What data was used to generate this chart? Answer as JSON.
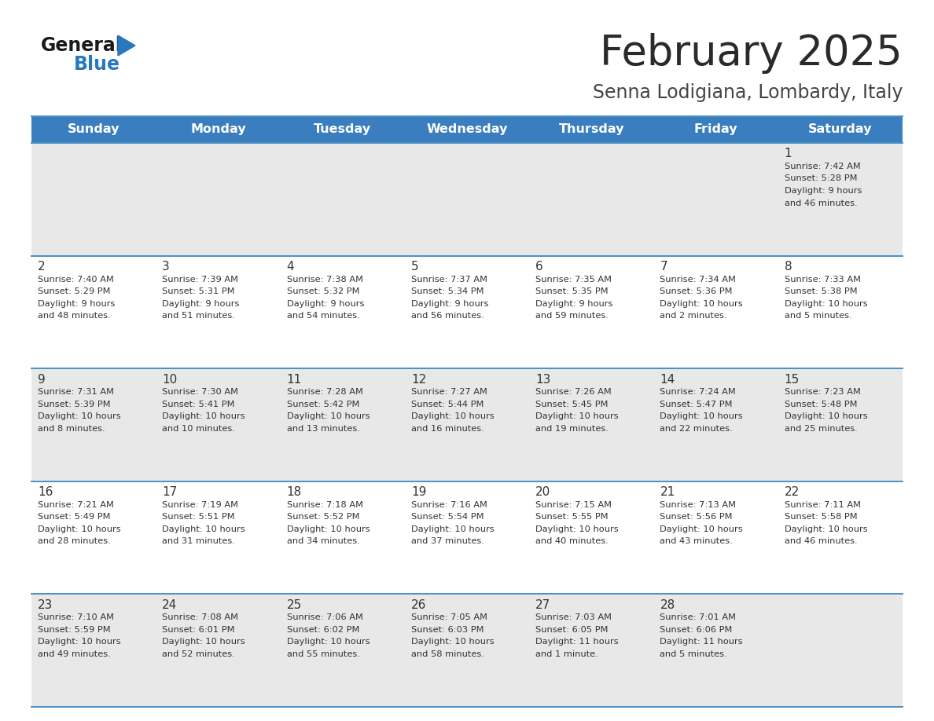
{
  "title": "February 2025",
  "subtitle": "Senna Lodigiana, Lombardy, Italy",
  "days_of_week": [
    "Sunday",
    "Monday",
    "Tuesday",
    "Wednesday",
    "Thursday",
    "Friday",
    "Saturday"
  ],
  "header_bg": "#3a7ebf",
  "header_text": "#ffffff",
  "row_bg_odd": "#e8e8e8",
  "row_bg_even": "#ffffff",
  "cell_text": "#333333",
  "line_color": "#4a90c4",
  "logo_general_color": "#1a1a1a",
  "logo_blue_color": "#2878be",
  "title_color": "#2a2a2a",
  "subtitle_color": "#444444",
  "calendar": [
    [
      {
        "day": null,
        "sunrise": null,
        "sunset": null,
        "daylight": null
      },
      {
        "day": null,
        "sunrise": null,
        "sunset": null,
        "daylight": null
      },
      {
        "day": null,
        "sunrise": null,
        "sunset": null,
        "daylight": null
      },
      {
        "day": null,
        "sunrise": null,
        "sunset": null,
        "daylight": null
      },
      {
        "day": null,
        "sunrise": null,
        "sunset": null,
        "daylight": null
      },
      {
        "day": null,
        "sunrise": null,
        "sunset": null,
        "daylight": null
      },
      {
        "day": 1,
        "sunrise": "7:42 AM",
        "sunset": "5:28 PM",
        "daylight": "9 hours\nand 46 minutes."
      }
    ],
    [
      {
        "day": 2,
        "sunrise": "7:40 AM",
        "sunset": "5:29 PM",
        "daylight": "9 hours\nand 48 minutes."
      },
      {
        "day": 3,
        "sunrise": "7:39 AM",
        "sunset": "5:31 PM",
        "daylight": "9 hours\nand 51 minutes."
      },
      {
        "day": 4,
        "sunrise": "7:38 AM",
        "sunset": "5:32 PM",
        "daylight": "9 hours\nand 54 minutes."
      },
      {
        "day": 5,
        "sunrise": "7:37 AM",
        "sunset": "5:34 PM",
        "daylight": "9 hours\nand 56 minutes."
      },
      {
        "day": 6,
        "sunrise": "7:35 AM",
        "sunset": "5:35 PM",
        "daylight": "9 hours\nand 59 minutes."
      },
      {
        "day": 7,
        "sunrise": "7:34 AM",
        "sunset": "5:36 PM",
        "daylight": "10 hours\nand 2 minutes."
      },
      {
        "day": 8,
        "sunrise": "7:33 AM",
        "sunset": "5:38 PM",
        "daylight": "10 hours\nand 5 minutes."
      }
    ],
    [
      {
        "day": 9,
        "sunrise": "7:31 AM",
        "sunset": "5:39 PM",
        "daylight": "10 hours\nand 8 minutes."
      },
      {
        "day": 10,
        "sunrise": "7:30 AM",
        "sunset": "5:41 PM",
        "daylight": "10 hours\nand 10 minutes."
      },
      {
        "day": 11,
        "sunrise": "7:28 AM",
        "sunset": "5:42 PM",
        "daylight": "10 hours\nand 13 minutes."
      },
      {
        "day": 12,
        "sunrise": "7:27 AM",
        "sunset": "5:44 PM",
        "daylight": "10 hours\nand 16 minutes."
      },
      {
        "day": 13,
        "sunrise": "7:26 AM",
        "sunset": "5:45 PM",
        "daylight": "10 hours\nand 19 minutes."
      },
      {
        "day": 14,
        "sunrise": "7:24 AM",
        "sunset": "5:47 PM",
        "daylight": "10 hours\nand 22 minutes."
      },
      {
        "day": 15,
        "sunrise": "7:23 AM",
        "sunset": "5:48 PM",
        "daylight": "10 hours\nand 25 minutes."
      }
    ],
    [
      {
        "day": 16,
        "sunrise": "7:21 AM",
        "sunset": "5:49 PM",
        "daylight": "10 hours\nand 28 minutes."
      },
      {
        "day": 17,
        "sunrise": "7:19 AM",
        "sunset": "5:51 PM",
        "daylight": "10 hours\nand 31 minutes."
      },
      {
        "day": 18,
        "sunrise": "7:18 AM",
        "sunset": "5:52 PM",
        "daylight": "10 hours\nand 34 minutes."
      },
      {
        "day": 19,
        "sunrise": "7:16 AM",
        "sunset": "5:54 PM",
        "daylight": "10 hours\nand 37 minutes."
      },
      {
        "day": 20,
        "sunrise": "7:15 AM",
        "sunset": "5:55 PM",
        "daylight": "10 hours\nand 40 minutes."
      },
      {
        "day": 21,
        "sunrise": "7:13 AM",
        "sunset": "5:56 PM",
        "daylight": "10 hours\nand 43 minutes."
      },
      {
        "day": 22,
        "sunrise": "7:11 AM",
        "sunset": "5:58 PM",
        "daylight": "10 hours\nand 46 minutes."
      }
    ],
    [
      {
        "day": 23,
        "sunrise": "7:10 AM",
        "sunset": "5:59 PM",
        "daylight": "10 hours\nand 49 minutes."
      },
      {
        "day": 24,
        "sunrise": "7:08 AM",
        "sunset": "6:01 PM",
        "daylight": "10 hours\nand 52 minutes."
      },
      {
        "day": 25,
        "sunrise": "7:06 AM",
        "sunset": "6:02 PM",
        "daylight": "10 hours\nand 55 minutes."
      },
      {
        "day": 26,
        "sunrise": "7:05 AM",
        "sunset": "6:03 PM",
        "daylight": "10 hours\nand 58 minutes."
      },
      {
        "day": 27,
        "sunrise": "7:03 AM",
        "sunset": "6:05 PM",
        "daylight": "11 hours\nand 1 minute."
      },
      {
        "day": 28,
        "sunrise": "7:01 AM",
        "sunset": "6:06 PM",
        "daylight": "11 hours\nand 5 minutes."
      },
      {
        "day": null,
        "sunrise": null,
        "sunset": null,
        "daylight": null
      }
    ]
  ]
}
